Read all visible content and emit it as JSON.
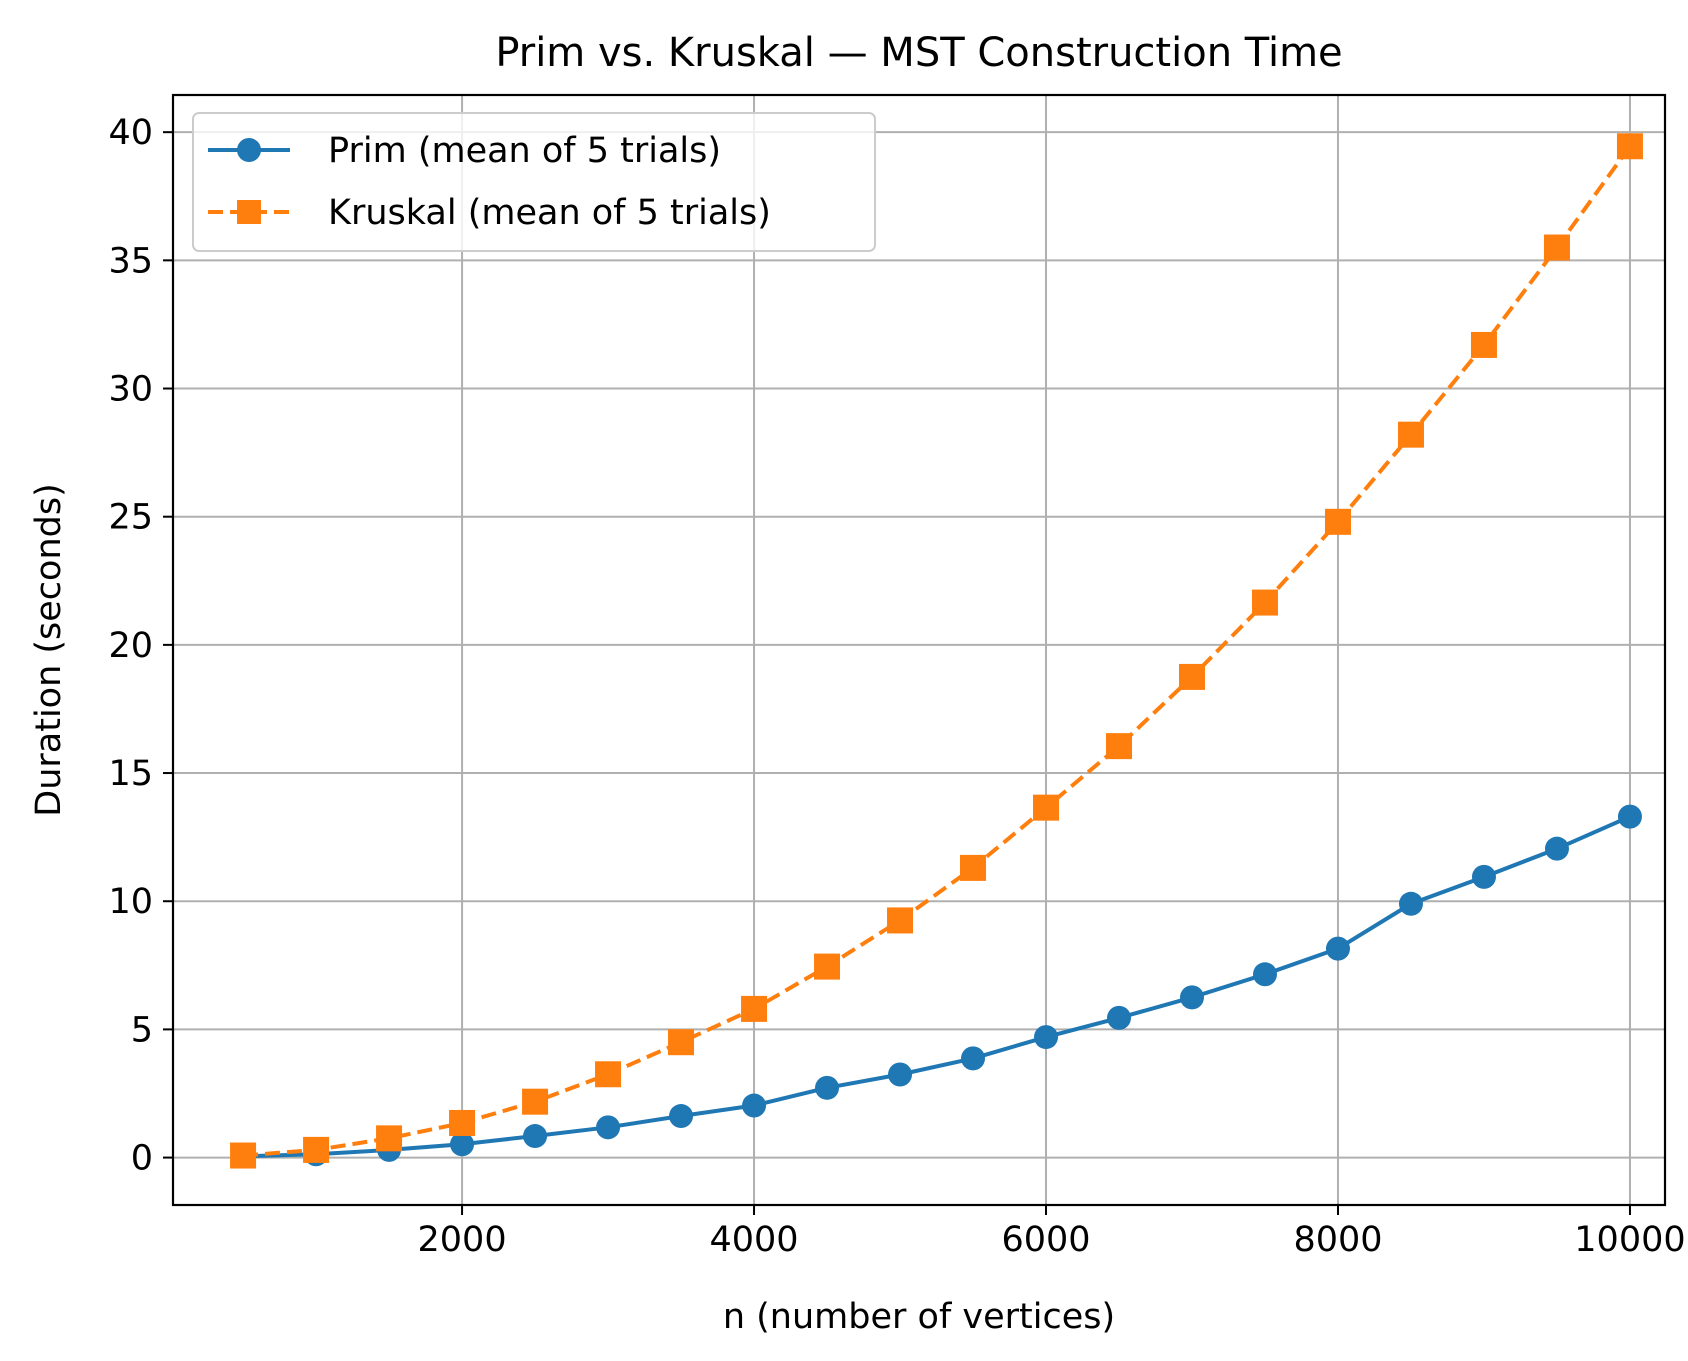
{
  "colors": {
    "prim": "#1f77b4",
    "kruskal": "#ff7f0e",
    "grid": "#b0b0b0",
    "axes": "#000000",
    "background": "#ffffff"
  },
  "chart_data": {
    "type": "line",
    "title": "Prim vs. Kruskal — MST Construction Time",
    "xlabel": "n  (number of vertices)",
    "ylabel": "Duration  (seconds)",
    "xlim": [
      20,
      10240
    ],
    "ylim": [
      -1.85,
      41.45
    ],
    "x_ticks": [
      2000,
      4000,
      6000,
      8000,
      10000
    ],
    "y_ticks": [
      0,
      5,
      10,
      15,
      20,
      25,
      30,
      35,
      40
    ],
    "grid": true,
    "legend_position": "upper left",
    "x": [
      500,
      1000,
      1500,
      2000,
      2500,
      3000,
      3500,
      4000,
      4500,
      5000,
      5500,
      6000,
      6500,
      7000,
      7500,
      8000,
      8500,
      9000,
      9500,
      10000
    ],
    "series": [
      {
        "name": "Prim (mean of 5 trials)",
        "marker": "circle",
        "linestyle": "solid",
        "color": "#1f77b4",
        "values": [
          0.05,
          0.13,
          0.3,
          0.52,
          0.84,
          1.18,
          1.62,
          2.03,
          2.72,
          3.24,
          3.87,
          4.7,
          5.45,
          6.25,
          7.15,
          8.15,
          9.9,
          10.95,
          12.05,
          13.3
        ]
      },
      {
        "name": "Kruskal (mean of 5 trials)",
        "marker": "square",
        "linestyle": "dashed",
        "color": "#ff7f0e",
        "values": [
          0.08,
          0.3,
          0.75,
          1.35,
          2.18,
          3.25,
          4.5,
          5.8,
          7.45,
          9.25,
          11.3,
          13.65,
          16.05,
          18.75,
          21.65,
          24.8,
          28.2,
          31.7,
          35.5,
          39.45
        ]
      }
    ]
  }
}
